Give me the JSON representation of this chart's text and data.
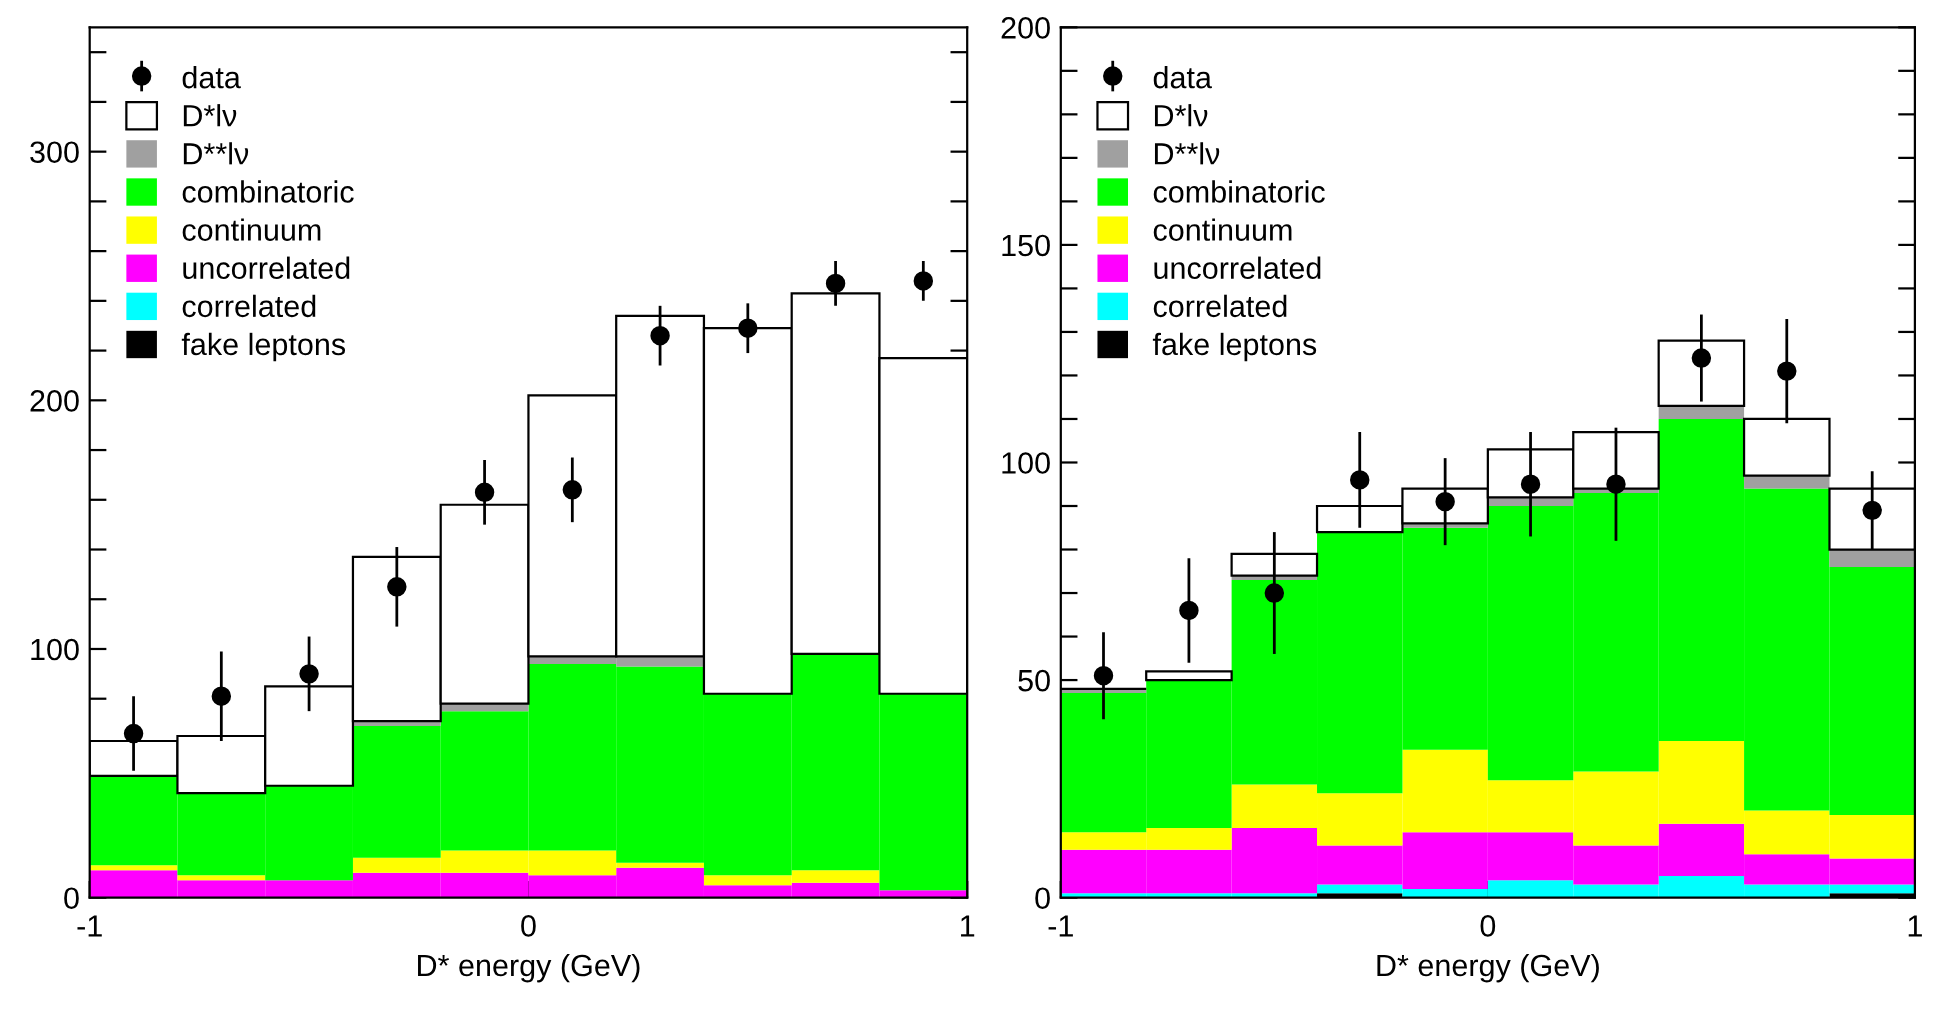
{
  "chart_data": [
    {
      "type": "bar",
      "xlabel": "D* energy (GeV)",
      "stacked": true,
      "legend": "top left",
      "grid": false,
      "x": [
        -0.9,
        -0.7,
        -0.5,
        -0.3,
        -0.1,
        0.1,
        0.3,
        0.5,
        0.7,
        0.9
      ],
      "xlim": [
        -1,
        1
      ],
      "xticks": [
        -1,
        0,
        1
      ],
      "ylim": [
        0,
        350
      ],
      "yticks": [
        0,
        {
          "value": 20,
          "label": null
        },
        {
          "value": 40,
          "label": null
        },
        {
          "value": 60,
          "label": null
        },
        {
          "value": 80,
          "label": null
        },
        100,
        {
          "value": 120,
          "label": null
        },
        {
          "value": 140,
          "label": null
        },
        {
          "value": 160,
          "label": null
        },
        {
          "value": 180,
          "label": null
        },
        200,
        {
          "value": 220,
          "label": null
        },
        {
          "value": 240,
          "label": null
        },
        {
          "value": 260,
          "label": null
        },
        {
          "value": 280,
          "label": null
        },
        300,
        {
          "value": 320,
          "label": null
        },
        {
          "value": 340,
          "label": null
        }
      ],
      "series": [
        {
          "name": "fake leptons",
          "color": "#000000",
          "values": [
            0,
            0,
            0,
            0,
            0,
            0,
            0,
            null,
            0,
            0
          ]
        },
        {
          "name": "correlated",
          "color": "#00ffff",
          "values": [
            0,
            0,
            0,
            0,
            0,
            0,
            0,
            0,
            0,
            0
          ]
        },
        {
          "name": "uncorrelated",
          "color": "#ff00ff",
          "values": [
            11,
            7,
            7,
            10,
            10,
            9,
            12,
            5,
            6,
            3
          ]
        },
        {
          "name": "continuum",
          "color": "#ffff00",
          "values": [
            2,
            2,
            0,
            6,
            9,
            10,
            2,
            4,
            5,
            0
          ]
        },
        {
          "name": "combinatoric",
          "color": "#00ff00",
          "values": [
            36,
            33,
            38,
            53,
            56,
            75,
            79,
            73,
            87,
            79
          ]
        },
        {
          "name": "D**lν",
          "color": "#a0a0a0",
          "values": [
            0,
            0,
            0,
            2,
            3,
            3,
            4,
            null,
            null,
            0
          ]
        },
        {
          "name": "D*lν",
          "color": "#ffffff",
          "values": [
            14,
            23,
            40,
            66,
            80,
            105,
            137,
            147,
            145,
            135
          ]
        },
        {
          "name": "data",
          "type": "scatter",
          "color": "#000000",
          "marker": "circle",
          "values": [
            66,
            81,
            90,
            125,
            163,
            164,
            226,
            229,
            247,
            248
          ],
          "errors": [
            15,
            18,
            15,
            16,
            13,
            13,
            12,
            10,
            9,
            8
          ]
        }
      ]
    },
    {
      "type": "bar",
      "xlabel": "D* energy (GeV)",
      "stacked": true,
      "legend": "top left",
      "grid": false,
      "x": [
        -0.9,
        -0.7,
        -0.5,
        -0.3,
        -0.1,
        0.1,
        0.3,
        0.5,
        0.7,
        0.9
      ],
      "xlim": [
        -1,
        1
      ],
      "xticks": [
        -1,
        0,
        1
      ],
      "ylim": [
        0,
        200
      ],
      "yticks": [
        0,
        {
          "value": 10,
          "label": null
        },
        {
          "value": 20,
          "label": null
        },
        {
          "value": 30,
          "label": null
        },
        {
          "value": 40,
          "label": null
        },
        50,
        {
          "value": 60,
          "label": null
        },
        {
          "value": 70,
          "label": null
        },
        {
          "value": 80,
          "label": null
        },
        {
          "value": 90,
          "label": null
        },
        100,
        {
          "value": 110,
          "label": null
        },
        {
          "value": 120,
          "label": null
        },
        {
          "value": 130,
          "label": null
        },
        {
          "value": 140,
          "label": null
        },
        150,
        {
          "value": 160,
          "label": null
        },
        {
          "value": 170,
          "label": null
        },
        {
          "value": 180,
          "label": null
        },
        {
          "value": 190,
          "label": null
        },
        200
      ],
      "series": [
        {
          "name": "fake leptons",
          "color": "#000000",
          "values": [
            0,
            0,
            0,
            1,
            0,
            0,
            0,
            0,
            0,
            1
          ]
        },
        {
          "name": "correlated",
          "color": "#00ffff",
          "values": [
            1,
            1,
            1,
            2,
            2,
            4,
            3,
            5,
            3,
            2
          ]
        },
        {
          "name": "uncorrelated",
          "color": "#ff00ff",
          "values": [
            10,
            10,
            15,
            9,
            13,
            11,
            9,
            12,
            7,
            6
          ]
        },
        {
          "name": "continuum",
          "color": "#ffff00",
          "values": [
            4,
            5,
            10,
            12,
            19,
            12,
            17,
            19,
            10,
            10
          ]
        },
        {
          "name": "combinatoric",
          "color": "#00ff00",
          "values": [
            32,
            34,
            47,
            60,
            51,
            63,
            64,
            74,
            74,
            57
          ]
        },
        {
          "name": "D**lν",
          "color": "#a0a0a0",
          "values": [
            1,
            0,
            1,
            0,
            1,
            2,
            1,
            3,
            3,
            4
          ]
        },
        {
          "name": "D*lν",
          "color": "#ffffff",
          "values": [
            0,
            2,
            5,
            6,
            8,
            11,
            13,
            15,
            13,
            14
          ]
        },
        {
          "name": "data",
          "type": "scatter",
          "color": "#000000",
          "marker": "circle",
          "values": [
            51,
            66,
            70,
            96,
            91,
            95,
            95,
            124,
            121,
            89
          ],
          "errors": [
            10,
            12,
            14,
            11,
            10,
            12,
            13,
            10,
            12,
            9
          ]
        }
      ]
    }
  ]
}
